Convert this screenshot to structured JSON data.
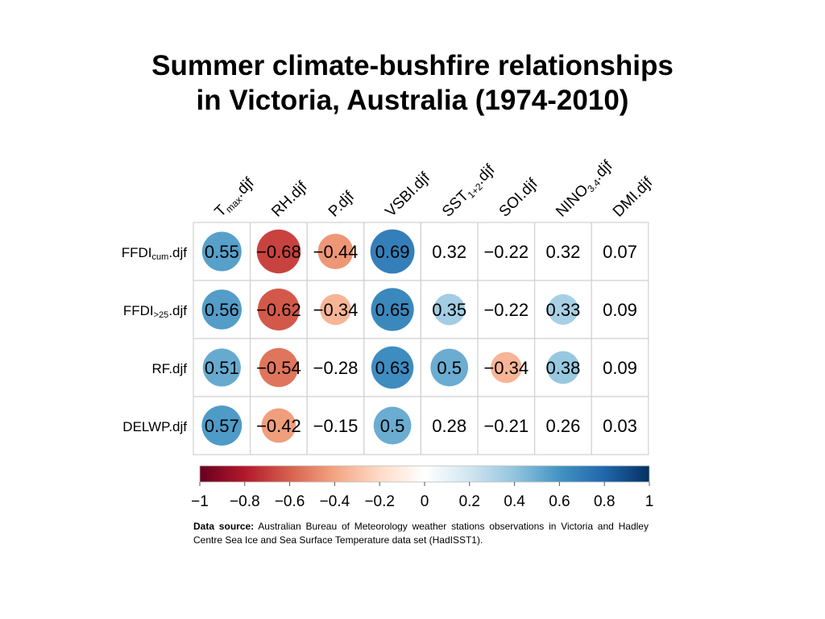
{
  "title_lines": [
    "Summer climate-bushfire relationships",
    "in Victoria, Australia (1974-2010)"
  ],
  "source": {
    "label": "Data source:",
    "text": "Australian Bureau of Meteorology weather stations observations in Victoria and Hadley Centre Sea Ice and Sea Surface Temperature data set (HadISST1)."
  },
  "chart_data": {
    "type": "heatmap",
    "columns": [
      {
        "base": "T",
        "sub": "max",
        "suffix": ".djf"
      },
      {
        "base": "RH",
        "sub": "",
        "suffix": ".djf"
      },
      {
        "base": "P",
        "sub": "",
        "suffix": ".djf"
      },
      {
        "base": "VSBI",
        "sub": "",
        "suffix": ".djf"
      },
      {
        "base": "SST",
        "sub": "1+2",
        "suffix": ".djf"
      },
      {
        "base": "SOI",
        "sub": "",
        "suffix": ".djf"
      },
      {
        "base": "NINO",
        "sub": "3.4",
        "suffix": ".djf"
      },
      {
        "base": "DMI",
        "sub": "",
        "suffix": ".djf"
      }
    ],
    "rows": [
      {
        "base": "FFDI",
        "sub": "cum",
        "suffix": ".djf"
      },
      {
        "base": "FFDI",
        "sub": ">25",
        "suffix": ".djf"
      },
      {
        "base": "RF",
        "sub": "",
        "suffix": ".djf"
      },
      {
        "base": "DELWP",
        "sub": "",
        "suffix": ".djf"
      }
    ],
    "values": [
      [
        0.55,
        -0.68,
        -0.44,
        0.69,
        0.32,
        -0.22,
        0.32,
        0.07
      ],
      [
        0.56,
        -0.62,
        -0.34,
        0.65,
        0.35,
        -0.22,
        0.33,
        0.09
      ],
      [
        0.51,
        -0.54,
        -0.28,
        0.63,
        0.5,
        -0.34,
        0.38,
        0.09
      ],
      [
        0.57,
        -0.42,
        -0.15,
        0.5,
        0.28,
        -0.21,
        0.26,
        0.03
      ]
    ],
    "significant": [
      [
        true,
        true,
        true,
        true,
        false,
        false,
        false,
        false
      ],
      [
        true,
        true,
        true,
        true,
        true,
        false,
        true,
        false
      ],
      [
        true,
        true,
        false,
        true,
        true,
        true,
        true,
        false
      ],
      [
        true,
        true,
        false,
        true,
        false,
        false,
        false,
        false
      ]
    ],
    "colorbar": {
      "range": [
        -1,
        1
      ],
      "ticks": [
        -1,
        -0.8,
        -0.6,
        -0.4,
        -0.2,
        0,
        0.2,
        0.4,
        0.6,
        0.8,
        1
      ],
      "tick_labels": [
        "−1",
        "−0.8",
        "−0.6",
        "−0.4",
        "−0.2",
        "0",
        "0.2",
        "0.4",
        "0.6",
        "0.8",
        "1"
      ],
      "colors": [
        "#67001F",
        "#B2182B",
        "#D6604D",
        "#F4A582",
        "#FDDBC7",
        "#FFFFFF",
        "#D1E5F0",
        "#92C5DE",
        "#4393C3",
        "#2166AC",
        "#053061"
      ]
    }
  }
}
